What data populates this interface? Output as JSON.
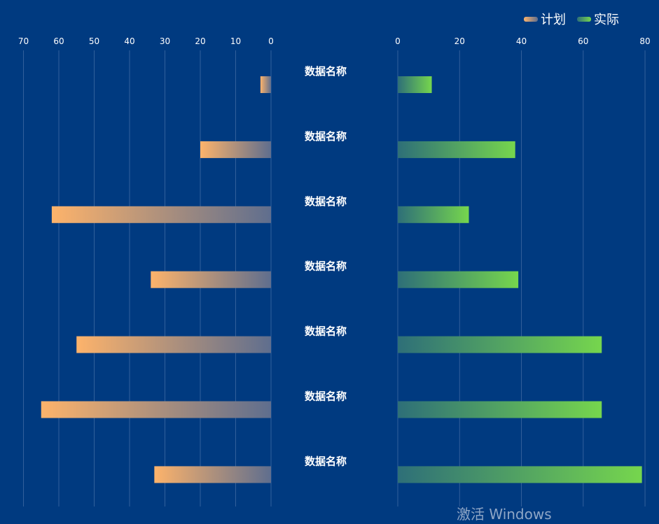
{
  "chart_data": {
    "type": "bar",
    "orientation": "horizontal",
    "layout": "mirrored",
    "categories": [
      "数据名称",
      "数据名称",
      "数据名称",
      "数据名称",
      "数据名称",
      "数据名称",
      "数据名称"
    ],
    "series": [
      {
        "name": "计划",
        "side": "left",
        "values": [
          3,
          20,
          62,
          34,
          55,
          65,
          33
        ],
        "gradient": [
          "#fdb36b",
          "#5f6e8e"
        ]
      },
      {
        "name": "实际",
        "side": "right",
        "values": [
          11,
          38,
          23,
          39,
          66,
          66,
          79
        ],
        "gradient": [
          "#2e6f78",
          "#76d64d"
        ]
      }
    ],
    "left_axis": {
      "range": [
        0,
        70
      ],
      "ticks": [
        70,
        60,
        50,
        40,
        30,
        20,
        10,
        0
      ]
    },
    "right_axis": {
      "range": [
        0,
        80
      ],
      "ticks": [
        0,
        20,
        40,
        60,
        80
      ]
    },
    "grid": true,
    "legend_position": "top-right",
    "title": "",
    "colors": {
      "background": "#003a80",
      "gridline": "#5b7fb0",
      "text": "#ffffff"
    }
  },
  "watermark": "激活 Windows"
}
